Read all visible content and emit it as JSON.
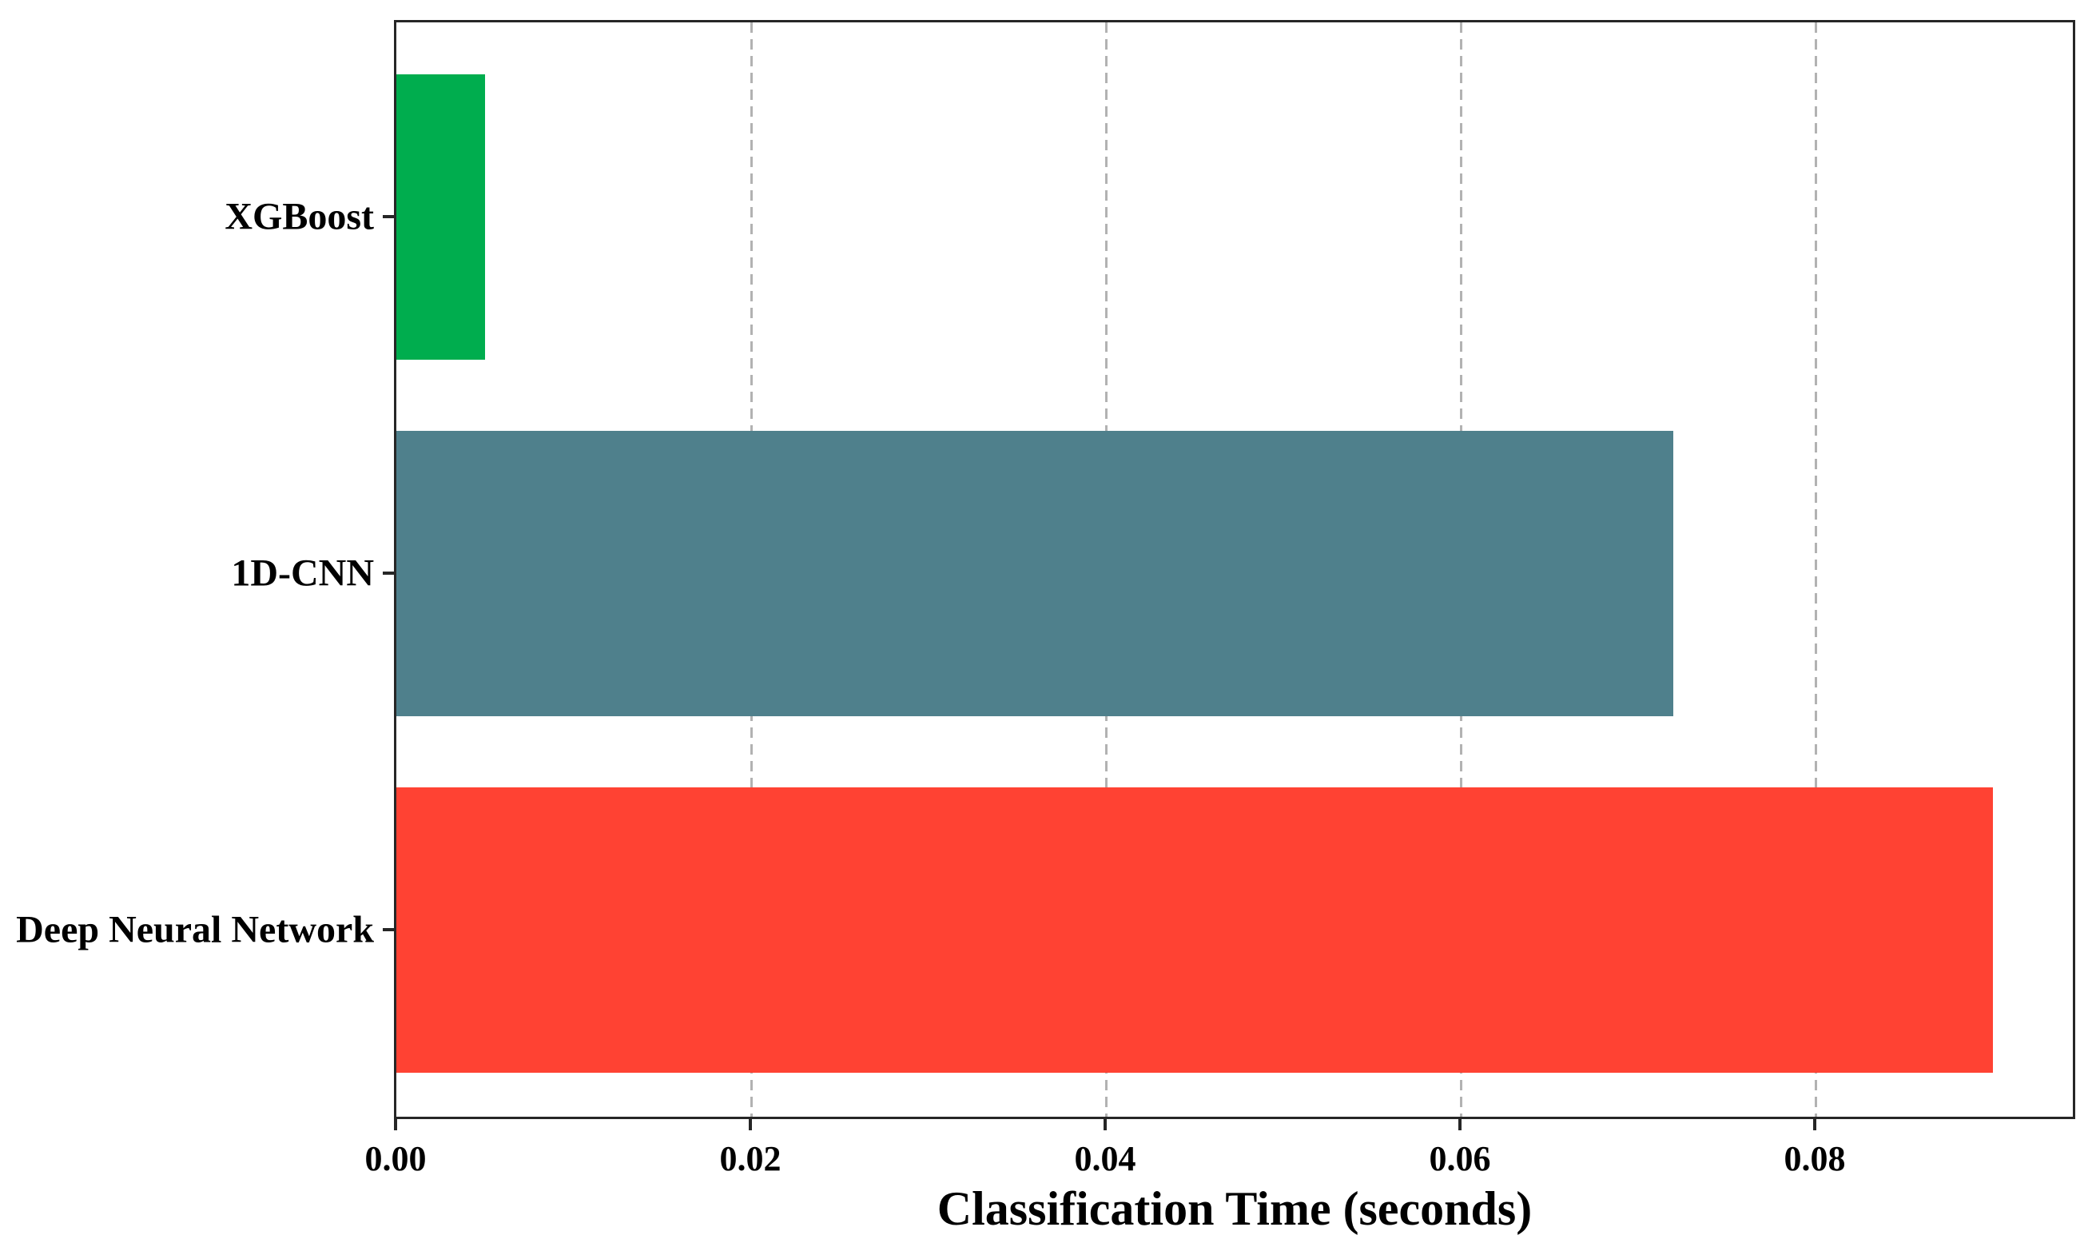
{
  "chart_data": {
    "type": "bar",
    "orientation": "horizontal",
    "categories": [
      "XGBoost",
      "1D-CNN",
      "Deep Neural Network"
    ],
    "values": [
      0.005,
      0.072,
      0.09
    ],
    "bar_colors": [
      "#00AD4E",
      "#4F808C",
      "#FF4233"
    ],
    "title": "",
    "xlabel": "Classification Time (seconds)",
    "ylabel": "",
    "xlim": [
      0,
      0.0945
    ],
    "xticks": [
      0,
      0.02,
      0.04,
      0.06,
      0.08
    ],
    "xtick_labels": [
      "0.00",
      "0.02",
      "0.04",
      "0.06",
      "0.08"
    ],
    "grid": "vertical-dashed-on",
    "grid_color": "#b2b2b2",
    "spine_color": "#262626",
    "legend": "none"
  }
}
